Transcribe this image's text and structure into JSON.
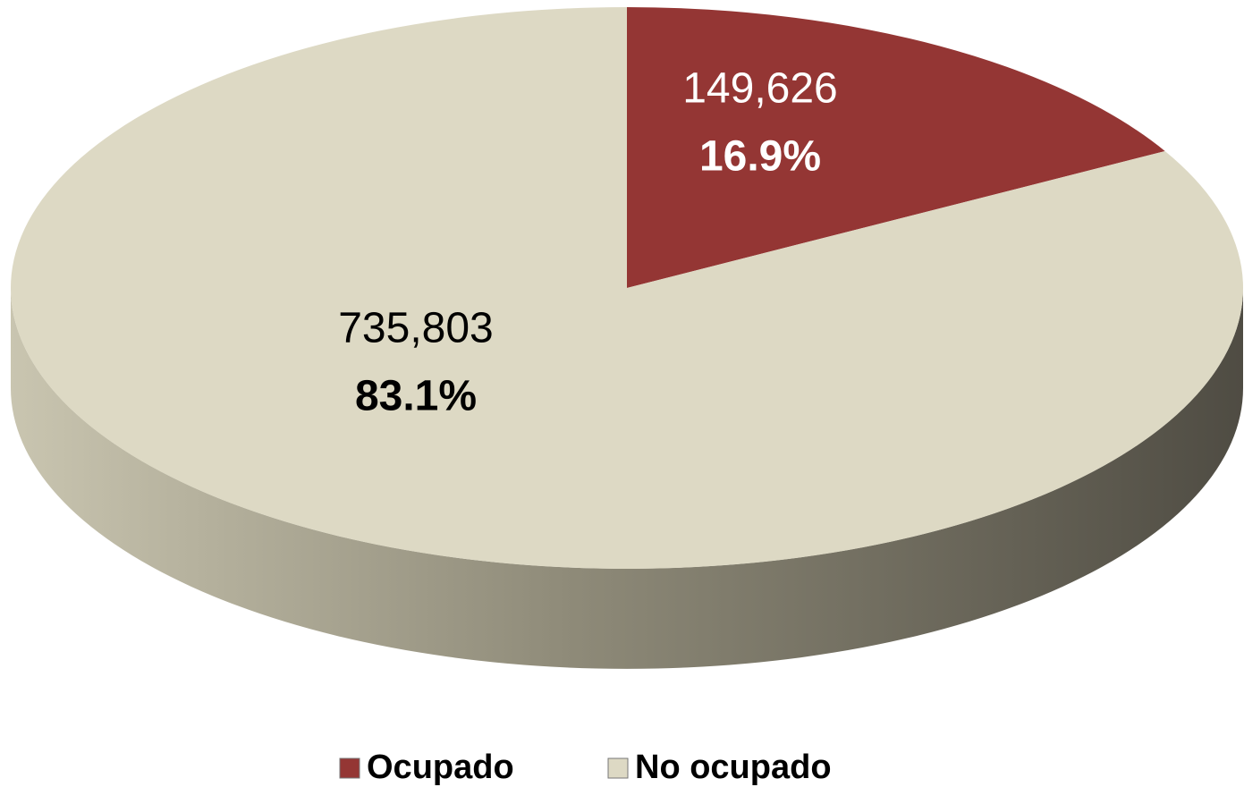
{
  "chart_data": {
    "type": "pie",
    "categories": [
      "Ocupado",
      "No ocupado"
    ],
    "values": [
      149626,
      735803
    ],
    "value_labels": [
      "149,626",
      "735,803"
    ],
    "percentages": [
      16.9,
      83.1
    ],
    "percentage_labels": [
      "16.9%",
      "83.1%"
    ],
    "colors": [
      "#943634",
      "#ddd9c4"
    ],
    "label_colors": [
      "#ffffff",
      "#000000"
    ],
    "legend": "bottom"
  }
}
